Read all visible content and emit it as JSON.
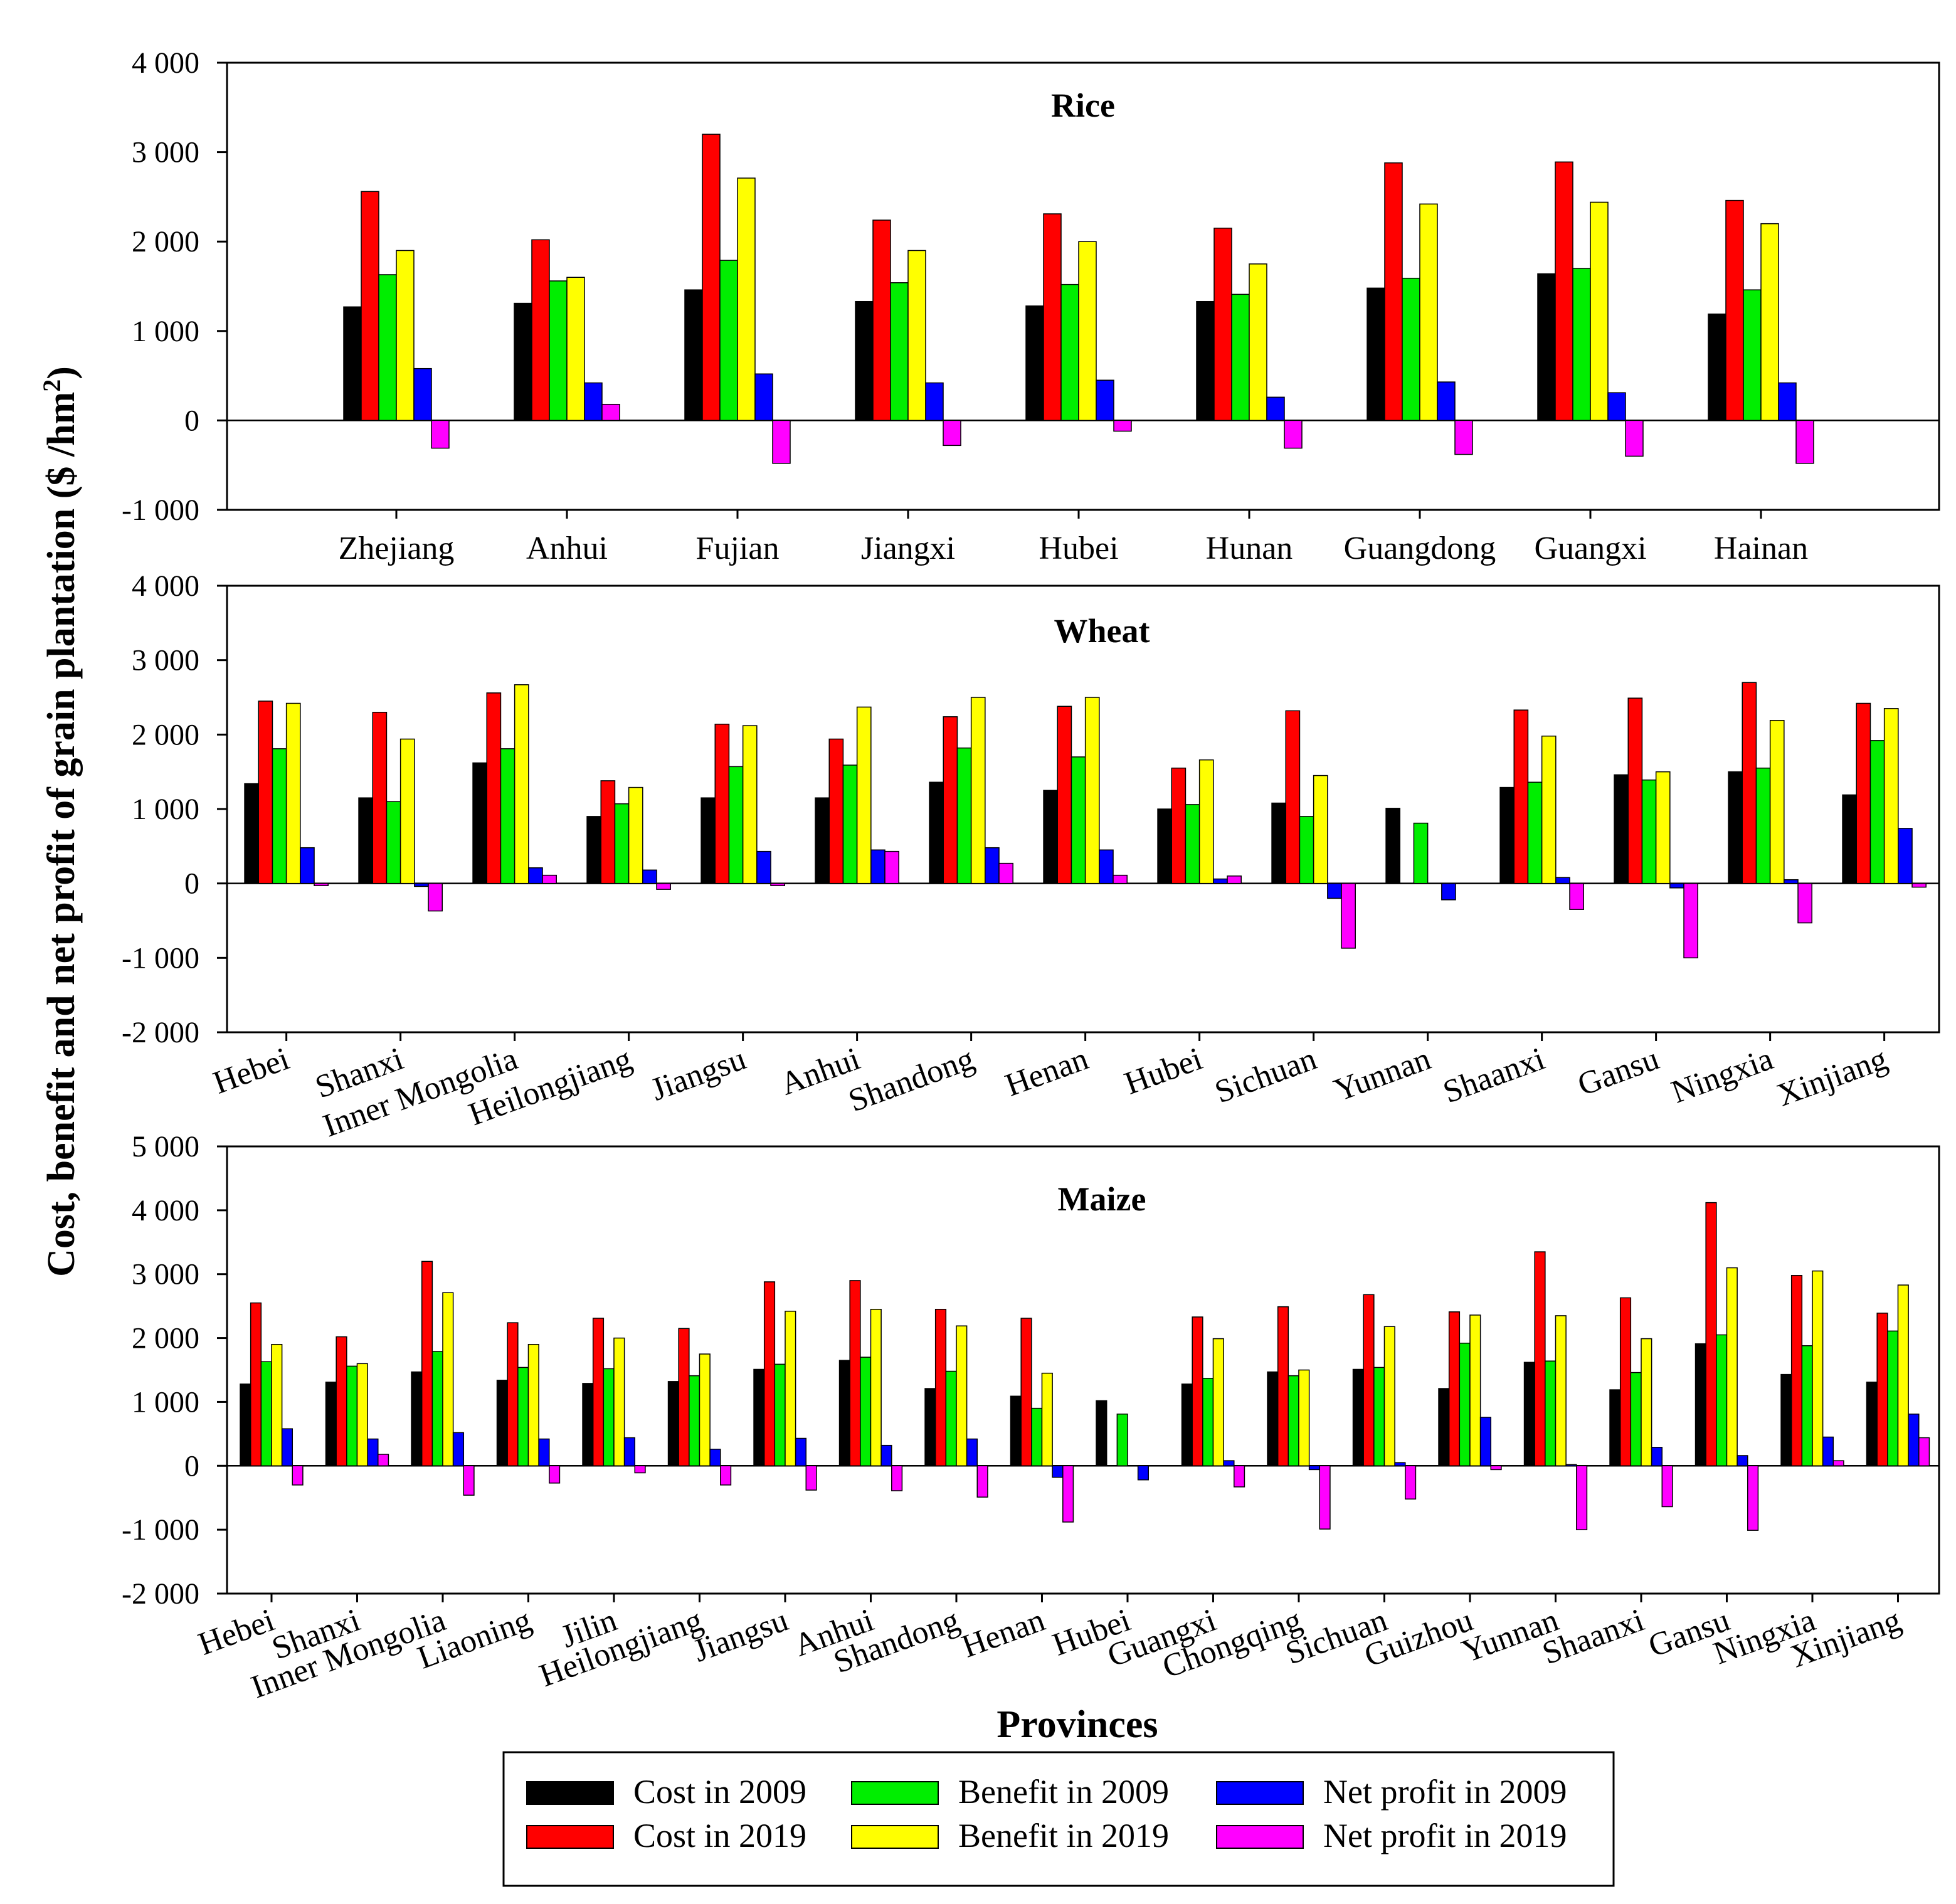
{
  "figure": {
    "ylabel_main": "Cost, benefit and net profit of grain plantation ($ /hm",
    "ylabel_sup": "2",
    "ylabel_close": ")",
    "xlabel": "Provinces"
  },
  "series_colors": {
    "cost_2009": "#000000",
    "cost_2019": "#ff0000",
    "benefit_2009": "#00ee00",
    "benefit_2019": "#ffff00",
    "net_2009": "#0000ff",
    "net_2019": "#ff00ff"
  },
  "legend": [
    {
      "key": "cost_2009",
      "label": "Cost in 2009"
    },
    {
      "key": "cost_2019",
      "label": "Cost in 2019"
    },
    {
      "key": "benefit_2009",
      "label": "Benefit in 2009"
    },
    {
      "key": "benefit_2019",
      "label": "Benefit in 2019"
    },
    {
      "key": "net_2009",
      "label": "Net profit in 2009"
    },
    {
      "key": "net_2019",
      "label": "Net profit in 2019"
    }
  ],
  "chart_data": [
    {
      "type": "bar",
      "title": "Rice",
      "ylim": [
        -1000,
        4000
      ],
      "yticks": [
        -1000,
        0,
        1000,
        2000,
        3000,
        4000
      ],
      "ytick_labels": [
        "-1 000",
        "0",
        "1 000",
        "2 000",
        "3 000",
        "4 000"
      ],
      "categories": [
        "Zhejiang",
        "Anhui",
        "Fujian",
        "Jiangxi",
        "Hubei",
        "Hunan",
        "Guangdong",
        "Guangxi",
        "Hainan"
      ],
      "series": [
        {
          "name": "Cost in 2009",
          "key": "cost_2009",
          "values": [
            1270,
            1310,
            1460,
            1330,
            1280,
            1330,
            1480,
            1640,
            1190
          ]
        },
        {
          "name": "Cost in 2019",
          "key": "cost_2019",
          "values": [
            2560,
            2020,
            3200,
            2240,
            2310,
            2150,
            2880,
            2890,
            2460
          ]
        },
        {
          "name": "Benefit in 2009",
          "key": "benefit_2009",
          "values": [
            1630,
            1560,
            1790,
            1540,
            1520,
            1410,
            1590,
            1700,
            1460
          ]
        },
        {
          "name": "Benefit in 2019",
          "key": "benefit_2019",
          "values": [
            1900,
            1600,
            2710,
            1900,
            2000,
            1750,
            2420,
            2440,
            2200
          ]
        },
        {
          "name": "Net profit in 2009",
          "key": "net_2009",
          "values": [
            580,
            420,
            520,
            420,
            450,
            260,
            430,
            310,
            420
          ]
        },
        {
          "name": "Net profit in 2019",
          "key": "net_2019",
          "values": [
            -310,
            180,
            -480,
            -280,
            -120,
            -310,
            -380,
            -400,
            -480
          ]
        }
      ]
    },
    {
      "type": "bar",
      "title": "Wheat",
      "ylim": [
        -2000,
        4000
      ],
      "yticks": [
        -2000,
        -1000,
        0,
        1000,
        2000,
        3000,
        4000
      ],
      "ytick_labels": [
        "-2 000",
        "-1 000",
        "0",
        "1 000",
        "2 000",
        "3 000",
        "4 000"
      ],
      "categories": [
        "Hebei",
        "Shanxi",
        "Inner Mongolia",
        "Heilongjiang",
        "Jiangsu",
        "Anhui",
        "Shandong",
        "Henan",
        "Hubei",
        "Sichuan",
        "Yunnan",
        "Shaanxi",
        "Gansu",
        "Ningxia",
        "Xinjiang"
      ],
      "series": [
        {
          "name": "Cost in 2009",
          "key": "cost_2009",
          "values": [
            1340,
            1150,
            1620,
            900,
            1150,
            1150,
            1360,
            1250,
            1000,
            1080,
            1010,
            1290,
            1460,
            1500,
            1190
          ]
        },
        {
          "name": "Cost in 2019",
          "key": "cost_2019",
          "values": [
            2450,
            2300,
            2560,
            1380,
            2140,
            1940,
            2240,
            2380,
            1550,
            2320,
            0,
            2330,
            2490,
            2700,
            2420
          ]
        },
        {
          "name": "Benefit in 2009",
          "key": "benefit_2009",
          "values": [
            1810,
            1100,
            1810,
            1070,
            1570,
            1590,
            1820,
            1700,
            1060,
            900,
            810,
            1360,
            1390,
            1550,
            1920
          ]
        },
        {
          "name": "Benefit in 2019",
          "key": "benefit_2019",
          "values": [
            2420,
            1940,
            2670,
            1290,
            2120,
            2370,
            2500,
            2500,
            1660,
            1450,
            0,
            1980,
            1500,
            2190,
            2350
          ]
        },
        {
          "name": "Net profit in 2009",
          "key": "net_2009",
          "values": [
            480,
            -40,
            210,
            180,
            430,
            450,
            480,
            450,
            60,
            -200,
            -220,
            80,
            -60,
            50,
            740
          ]
        },
        {
          "name": "Net profit in 2019",
          "key": "net_2019",
          "values": [
            -30,
            -370,
            110,
            -80,
            -30,
            430,
            270,
            110,
            100,
            -870,
            0,
            -350,
            -1000,
            -530,
            -50
          ]
        }
      ]
    },
    {
      "type": "bar",
      "title": "Maize",
      "ylim": [
        -2000,
        5000
      ],
      "yticks": [
        -2000,
        -1000,
        0,
        1000,
        2000,
        3000,
        4000,
        5000
      ],
      "ytick_labels": [
        "-2 000",
        "-1 000",
        "0",
        "1 000",
        "2 000",
        "3 000",
        "4 000",
        "5 000"
      ],
      "categories": [
        "Hebei",
        "Shanxi",
        "Inner Mongolia",
        "Liaoning",
        "Jilin",
        "Heilongjiang",
        "Jiangsu",
        "Anhui",
        "Shandong",
        "Henan",
        "Hubei",
        "Guangxi",
        "Chongqing",
        "Sichuan",
        "Guizhou",
        "Yunnan",
        "Shaanxi",
        "Gansu",
        "Ningxia",
        "Xinjiang"
      ],
      "series": [
        {
          "name": "Cost in 2009",
          "key": "cost_2009",
          "values": [
            1280,
            1310,
            1470,
            1340,
            1290,
            1320,
            1510,
            1650,
            1210,
            1090,
            1020,
            1280,
            1470,
            1510,
            1210,
            1620,
            1190,
            1910,
            1430,
            1310
          ]
        },
        {
          "name": "Cost in 2019",
          "key": "cost_2019",
          "values": [
            2550,
            2020,
            3200,
            2240,
            2310,
            2150,
            2880,
            2900,
            2450,
            2310,
            0,
            2330,
            2490,
            2680,
            2410,
            3350,
            2630,
            4120,
            2980,
            2390
          ]
        },
        {
          "name": "Benefit in 2009",
          "key": "benefit_2009",
          "values": [
            1630,
            1560,
            1790,
            1540,
            1520,
            1410,
            1590,
            1700,
            1480,
            900,
            810,
            1370,
            1410,
            1540,
            1920,
            1640,
            1460,
            2050,
            1880,
            2110
          ]
        },
        {
          "name": "Benefit in 2019",
          "key": "benefit_2019",
          "values": [
            1900,
            1600,
            2710,
            1900,
            2000,
            1750,
            2420,
            2450,
            2190,
            1450,
            0,
            1990,
            1500,
            2180,
            2360,
            2350,
            1990,
            3100,
            3050,
            2830
          ]
        },
        {
          "name": "Net profit in 2009",
          "key": "net_2009",
          "values": [
            580,
            420,
            520,
            420,
            440,
            260,
            430,
            320,
            420,
            -180,
            -220,
            80,
            -60,
            50,
            760,
            20,
            290,
            160,
            450,
            810
          ]
        },
        {
          "name": "Net profit in 2019",
          "key": "net_2019",
          "values": [
            -300,
            180,
            -460,
            -270,
            -110,
            -300,
            -380,
            -390,
            -490,
            -880,
            0,
            -330,
            -990,
            -520,
            -60,
            -1000,
            -640,
            -1010,
            80,
            440
          ]
        }
      ]
    }
  ]
}
